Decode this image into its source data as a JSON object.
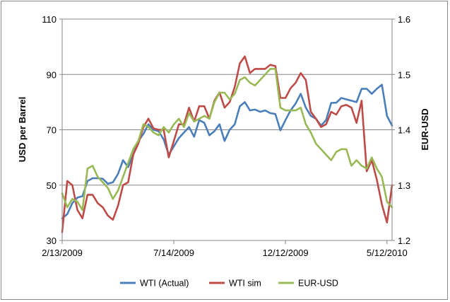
{
  "chart_data": {
    "type": "line",
    "title": "",
    "xlabel": "",
    "ylabel": "USD per Barrel",
    "y2label": "EUR-USD",
    "ylim": [
      30,
      110
    ],
    "yticks": [
      30,
      50,
      70,
      90,
      110
    ],
    "y2lim": [
      1.2,
      1.6
    ],
    "y2ticks": [
      "1.2",
      "1.3",
      "1.4",
      "1.5",
      "1.6"
    ],
    "x_tick_labels": [
      "2/13/2009",
      "7/14/2009",
      "12/12/2009",
      "5/12/2010"
    ],
    "grid": "horizontal",
    "legend": "bottom",
    "num_points": 66,
    "series": [
      {
        "name": "WTI (Actual)",
        "axis": "left",
        "color": "#4A7EBB",
        "values": [
          38,
          39.5,
          43.5,
          45.5,
          46,
          51.5,
          52.5,
          52.5,
          52.3,
          50.5,
          51,
          54,
          59,
          56.5,
          61,
          66,
          68.5,
          72,
          70,
          69.5,
          66.5,
          61,
          64,
          67,
          69,
          71,
          67.5,
          73.5,
          72.5,
          68,
          69.5,
          72,
          66,
          70,
          72,
          78.5,
          80,
          77,
          77.3,
          76.5,
          77,
          76,
          75.7,
          69.8,
          73.5,
          77,
          79.5,
          83,
          78,
          75,
          74,
          71.5,
          73.5,
          79.7,
          79.8,
          81.5,
          81,
          80.5,
          80,
          84.8,
          84.8,
          83,
          84.8,
          86.3,
          75,
          71.5
        ]
      },
      {
        "name": "WTI sim",
        "axis": "left",
        "color": "#BE4B48",
        "values": [
          33,
          51.5,
          50,
          41,
          38,
          46.5,
          46.5,
          43.5,
          42,
          39,
          37.5,
          42.5,
          50,
          51,
          61,
          65,
          71,
          74,
          70.5,
          70,
          70,
          60,
          66,
          72,
          72,
          78,
          73,
          78.5,
          78.5,
          74,
          80.5,
          83.5,
          78,
          80,
          85.5,
          94,
          96.5,
          90.5,
          92,
          92,
          92,
          93.5,
          93,
          81.5,
          81.5,
          85,
          87,
          90.5,
          88,
          76.5,
          74,
          71,
          72,
          76.5,
          75.5,
          78.5,
          79,
          78,
          72.5,
          80.5,
          55,
          59,
          52,
          43,
          36.5,
          50
        ]
      },
      {
        "name": "EUR-USD",
        "axis": "right",
        "color": "#98B954",
        "values": [
          1.285,
          1.26,
          1.275,
          1.27,
          1.255,
          1.33,
          1.335,
          1.315,
          1.305,
          1.295,
          1.275,
          1.29,
          1.315,
          1.34,
          1.365,
          1.38,
          1.41,
          1.405,
          1.395,
          1.39,
          1.405,
          1.395,
          1.41,
          1.42,
          1.405,
          1.43,
          1.415,
          1.42,
          1.425,
          1.42,
          1.45,
          1.467,
          1.467,
          1.455,
          1.465,
          1.49,
          1.495,
          1.485,
          1.48,
          1.49,
          1.5,
          1.51,
          1.51,
          1.44,
          1.435,
          1.435,
          1.435,
          1.44,
          1.41,
          1.395,
          1.375,
          1.365,
          1.355,
          1.345,
          1.36,
          1.365,
          1.365,
          1.335,
          1.345,
          1.335,
          1.33,
          1.35,
          1.33,
          1.315,
          1.27,
          1.26
        ]
      }
    ]
  }
}
